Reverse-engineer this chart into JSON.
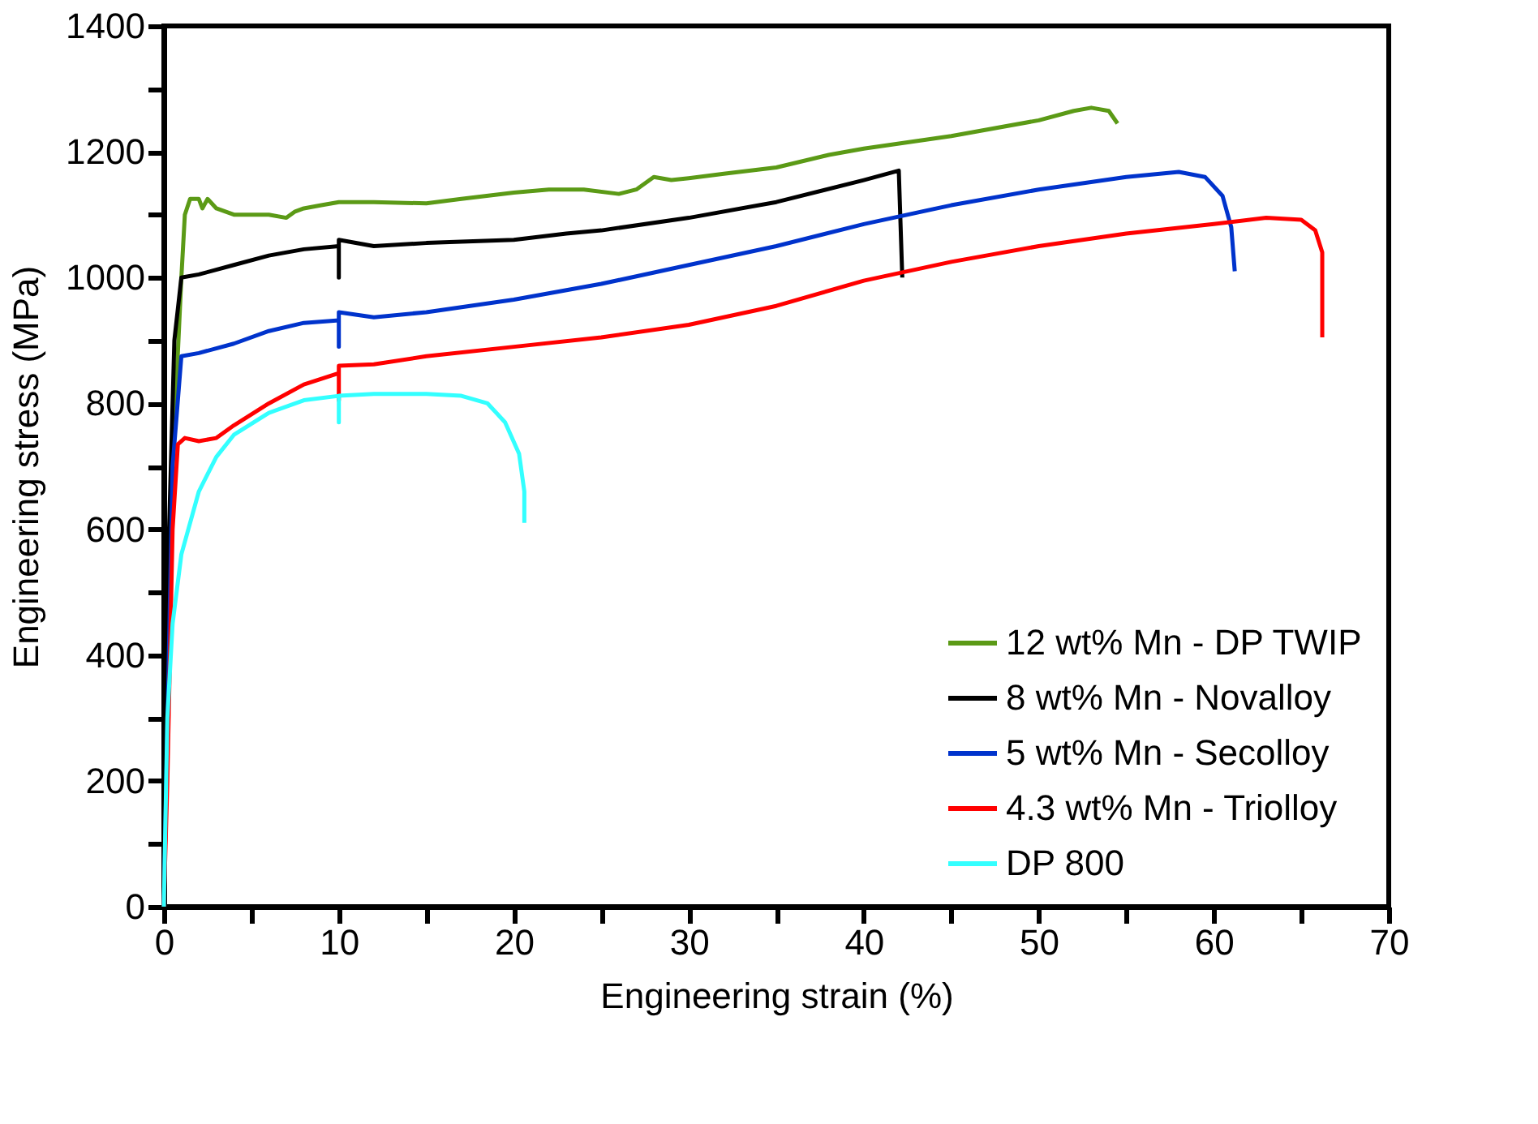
{
  "chart_data": {
    "type": "line",
    "xlabel": "Engineering strain (%)",
    "ylabel": "Engineering stress (MPa)",
    "xlim": [
      0,
      70
    ],
    "ylim": [
      0,
      1400
    ],
    "xticks": [
      0,
      {
        "value": 5,
        "label": null
      },
      10,
      {
        "value": 15,
        "label": null
      },
      20,
      {
        "value": 25,
        "label": null
      },
      30,
      {
        "value": 35,
        "label": null
      },
      40,
      {
        "value": 45,
        "label": null
      },
      50,
      {
        "value": 55,
        "label": null
      },
      60,
      {
        "value": 65,
        "label": null
      },
      70
    ],
    "yticks": [
      0,
      {
        "value": 100,
        "label": null
      },
      200,
      {
        "value": 300,
        "label": null
      },
      400,
      {
        "value": 500,
        "label": null
      },
      600,
      {
        "value": 700,
        "label": null
      },
      800,
      {
        "value": 900,
        "label": null
      },
      1000,
      {
        "value": 1100,
        "label": null
      },
      1200,
      {
        "value": 1300,
        "label": null
      },
      1400
    ],
    "grid": false,
    "legend": "bottom right",
    "line_style": "solid",
    "marker": "none",
    "series": [
      {
        "name": "12 wt% Mn - DP TWIP",
        "color": "#5b9a16",
        "x": [
          0,
          0.5,
          1,
          1.2,
          1.5,
          2,
          2.2,
          2.5,
          3,
          4,
          6,
          7,
          7.5,
          8,
          9,
          10,
          12,
          15,
          17,
          20,
          22,
          24,
          26,
          27,
          28,
          29,
          30,
          32,
          35,
          38,
          40,
          45,
          50,
          52,
          53,
          54,
          54.5
        ],
        "values": [
          0,
          700,
          1000,
          1100,
          1125,
          1125,
          1110,
          1125,
          1110,
          1100,
          1100,
          1095,
          1105,
          1110,
          1115,
          1120,
          1120,
          1118,
          1125,
          1135,
          1140,
          1140,
          1133,
          1140,
          1160,
          1155,
          1158,
          1165,
          1175,
          1195,
          1205,
          1225,
          1250,
          1265,
          1270,
          1265,
          1245
        ]
      },
      {
        "name": "8 wt% Mn - Novalloy",
        "color": "#000000",
        "x": [
          0,
          0.3,
          0.6,
          1,
          2,
          4,
          6,
          8,
          10,
          10,
          10,
          12,
          15,
          20,
          23,
          25,
          30,
          35,
          40,
          42,
          42.2
        ],
        "values": [
          0,
          600,
          900,
          1000,
          1005,
          1020,
          1035,
          1045,
          1050,
          1000,
          1060,
          1050,
          1055,
          1060,
          1070,
          1075,
          1095,
          1120,
          1155,
          1170,
          1000
        ]
      },
      {
        "name": "5 wt% Mn - Secolloy",
        "color": "#0033cc",
        "x": [
          0,
          0.5,
          1,
          2,
          4,
          6,
          8,
          10,
          10,
          10,
          12,
          15,
          20,
          25,
          30,
          35,
          40,
          45,
          50,
          55,
          58,
          59.5,
          60.5,
          61,
          61.2
        ],
        "values": [
          0,
          700,
          875,
          880,
          895,
          915,
          928,
          932,
          890,
          945,
          937,
          945,
          965,
          990,
          1020,
          1050,
          1085,
          1115,
          1140,
          1160,
          1168,
          1160,
          1130,
          1080,
          1010
        ]
      },
      {
        "name": "4.3 wt% Mn - Triolloy",
        "color": "#ff0000",
        "x": [
          0,
          0.2,
          0.5,
          0.8,
          1.2,
          2,
          3,
          4,
          6,
          8,
          10,
          10,
          10,
          12,
          15,
          20,
          25,
          30,
          35,
          40,
          45,
          50,
          55,
          60,
          63,
          65,
          65.8,
          66.2,
          66.2
        ],
        "values": [
          0,
          200,
          600,
          735,
          745,
          740,
          745,
          765,
          800,
          830,
          848,
          805,
          860,
          862,
          875,
          890,
          905,
          925,
          955,
          995,
          1025,
          1050,
          1070,
          1085,
          1095,
          1092,
          1075,
          1040,
          905
        ]
      },
      {
        "name": "DP 800",
        "color": "#33ffff",
        "x": [
          0,
          0.2,
          0.5,
          1,
          2,
          3,
          4,
          6,
          8,
          10,
          10,
          10,
          12,
          15,
          17,
          18.5,
          19.5,
          20.3,
          20.6,
          20.6
        ],
        "values": [
          0,
          300,
          450,
          560,
          660,
          715,
          750,
          785,
          805,
          812,
          770,
          812,
          815,
          815,
          812,
          800,
          770,
          720,
          660,
          610
        ]
      }
    ]
  }
}
